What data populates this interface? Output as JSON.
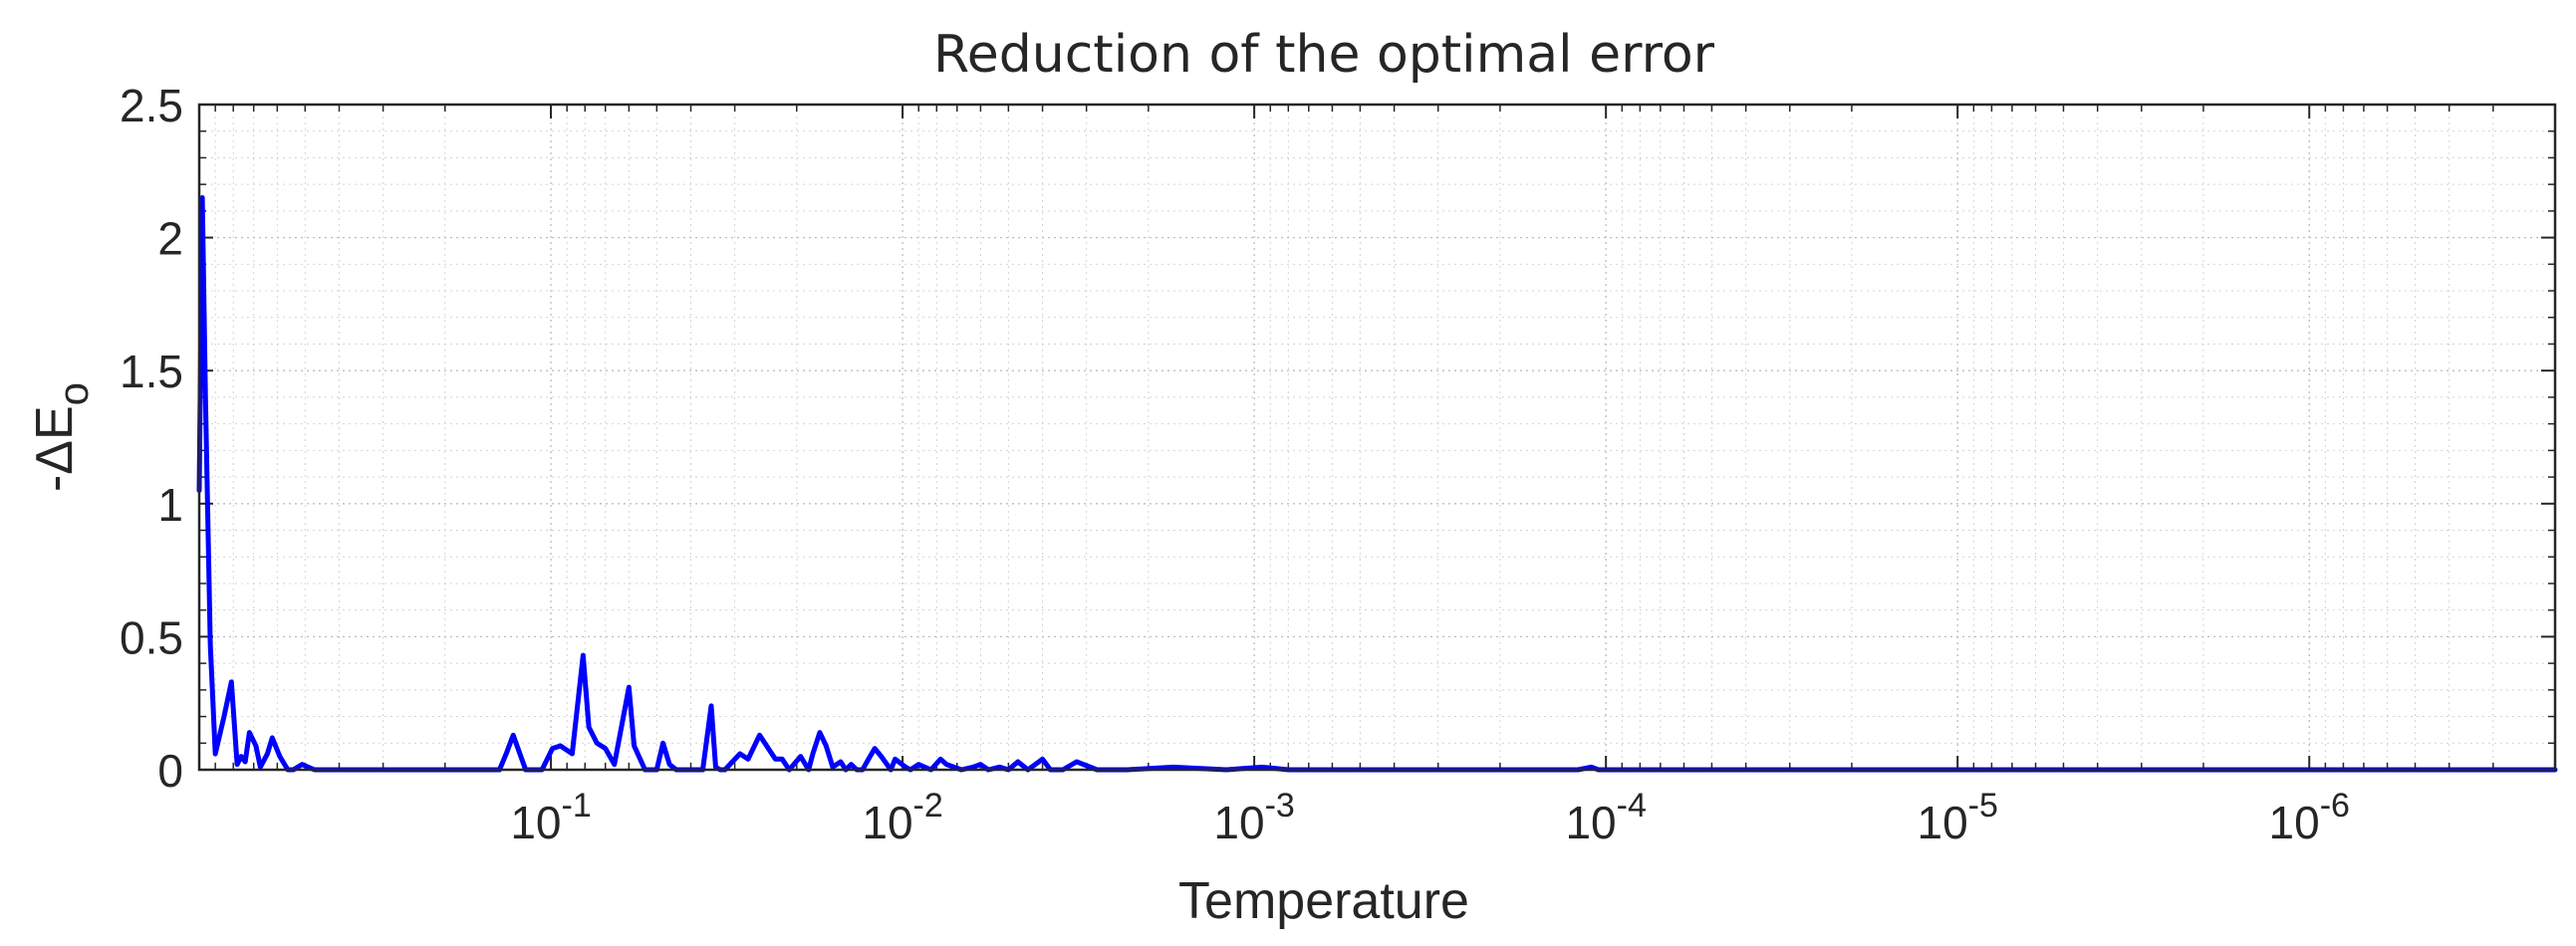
{
  "chart_data": {
    "type": "line",
    "title": "Reduction of the optimal error",
    "xlabel": "Temperature",
    "ylabel": "-ΔE",
    "ylabel_subscript": "o",
    "x_scale": "log",
    "x_direction": "reversed",
    "xlim": [
      1.0,
      2e-07
    ],
    "ylim": [
      0,
      2.5
    ],
    "grid": true,
    "minor_grid": true,
    "line_color": "#0000ff",
    "x_ticks": [
      {
        "base": "10",
        "exp": "-1",
        "value": 0.1
      },
      {
        "base": "10",
        "exp": "-2",
        "value": 0.01
      },
      {
        "base": "10",
        "exp": "-3",
        "value": 0.001
      },
      {
        "base": "10",
        "exp": "-4",
        "value": 0.0001
      },
      {
        "base": "10",
        "exp": "-5",
        "value": 1e-05
      },
      {
        "base": "10",
        "exp": "-6",
        "value": 1e-06
      }
    ],
    "y_ticks": [
      {
        "label": "0",
        "value": 0
      },
      {
        "label": "0.5",
        "value": 0.5
      },
      {
        "label": "1",
        "value": 1
      },
      {
        "label": "1.5",
        "value": 1.5
      },
      {
        "label": "2",
        "value": 2
      },
      {
        "label": "2.5",
        "value": 2.5
      }
    ],
    "series": [
      {
        "color": "#0000ff",
        "x": [
          1.0,
          0.98,
          0.96,
          0.93,
          0.9,
          0.85,
          0.81,
          0.78,
          0.76,
          0.74,
          0.72,
          0.69,
          0.67,
          0.64,
          0.62,
          0.59,
          0.56,
          0.54,
          0.51,
          0.47,
          0.43,
          0.4,
          0.37,
          0.34,
          0.24,
          0.14,
          0.134,
          0.128,
          0.118,
          0.106,
          0.099,
          0.094,
          0.087,
          0.081,
          0.078,
          0.074,
          0.07,
          0.066,
          0.06,
          0.058,
          0.054,
          0.05,
          0.048,
          0.046,
          0.044,
          0.042,
          0.037,
          0.035,
          0.034,
          0.033,
          0.032,
          0.029,
          0.0275,
          0.0255,
          0.023,
          0.022,
          0.021,
          0.0195,
          0.0185,
          0.018,
          0.0172,
          0.0165,
          0.0158,
          0.015,
          0.0145,
          0.014,
          0.0135,
          0.013,
          0.0125,
          0.012,
          0.0115,
          0.0108,
          0.0105,
          0.0098,
          0.0095,
          0.009,
          0.0083,
          0.0078,
          0.0075,
          0.0068,
          0.0063,
          0.006,
          0.0057,
          0.0053,
          0.005,
          0.0047,
          0.0044,
          0.004,
          0.0038,
          0.0035,
          0.0032,
          0.0028,
          0.0026,
          0.0023,
          0.0017,
          0.0012,
          0.00095,
          0.0008,
          0.0005,
          0.0002,
          0.00012,
          0.00011,
          0.000105,
          0.0001,
          7e-05,
          4e-05,
          2e-05,
          9e-06,
          4e-06,
          2e-06,
          5e-07,
          2e-07
        ],
        "y": [
          1.05,
          2.15,
          1.4,
          0.47,
          0.06,
          0.2,
          0.33,
          0.02,
          0.05,
          0.03,
          0.14,
          0.09,
          0.01,
          0.06,
          0.12,
          0.05,
          0.0,
          0.0,
          0.02,
          0.0,
          0.0,
          0.0,
          0.0,
          0.0,
          0.0,
          0.0,
          0.06,
          0.13,
          0.0,
          0.0,
          0.08,
          0.09,
          0.06,
          0.43,
          0.16,
          0.1,
          0.08,
          0.02,
          0.31,
          0.09,
          0.0,
          0.0,
          0.1,
          0.02,
          0.0,
          0.0,
          0.0,
          0.24,
          0.01,
          0.0,
          0.0,
          0.06,
          0.04,
          0.13,
          0.04,
          0.04,
          0.0,
          0.05,
          0.0,
          0.06,
          0.14,
          0.09,
          0.01,
          0.03,
          0.0,
          0.02,
          0.0,
          0.0,
          0.04,
          0.08,
          0.05,
          0.0,
          0.04,
          0.01,
          0.0,
          0.02,
          0.0,
          0.04,
          0.02,
          0.0,
          0.01,
          0.02,
          0.0,
          0.01,
          0.0,
          0.03,
          0.0,
          0.04,
          0.0,
          0.0,
          0.03,
          0.0,
          0.0,
          0.0,
          0.01,
          0.0,
          0.01,
          0.0,
          0.0,
          0.0,
          0.0,
          0.01,
          0.0,
          0.0,
          0.0,
          0.0,
          0.0,
          0.0,
          0.0,
          0.0,
          0.0,
          0.0
        ]
      }
    ]
  }
}
